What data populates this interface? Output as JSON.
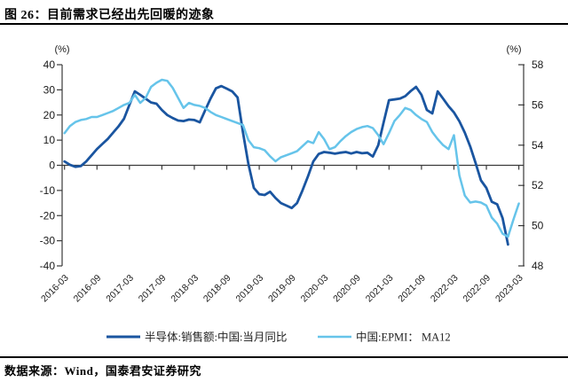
{
  "page": {
    "title": "图 26：目前需求已经出先回暖的迹象",
    "source": "数据来源：Wind，国泰君安证券研究"
  },
  "chart_data": {
    "type": "line",
    "grid": false,
    "legend_position": "bottom",
    "left_axis": {
      "unit_label": "(%)",
      "min": -40,
      "max": 40,
      "ticks": [
        40,
        30,
        20,
        10,
        0,
        -10,
        -20,
        -30,
        -40
      ]
    },
    "right_axis": {
      "unit_label": "(%)",
      "min": 48,
      "max": 58,
      "ticks": [
        58,
        56,
        54,
        52,
        50,
        48
      ]
    },
    "x_axis": {
      "tick_every_months": 6,
      "tick_labels": [
        "2016-03",
        "2016-09",
        "2017-03",
        "2017-09",
        "2018-03",
        "2018-09",
        "2019-03",
        "2019-09",
        "2020-03",
        "2020-09",
        "2021-03",
        "2021-09",
        "2022-03",
        "2022-09",
        "2023-03"
      ]
    },
    "categories": [
      "2016-03",
      "2016-04",
      "2016-05",
      "2016-06",
      "2016-07",
      "2016-08",
      "2016-09",
      "2016-10",
      "2016-11",
      "2016-12",
      "2017-01",
      "2017-02",
      "2017-03",
      "2017-04",
      "2017-05",
      "2017-06",
      "2017-07",
      "2017-08",
      "2017-09",
      "2017-10",
      "2017-11",
      "2017-12",
      "2018-01",
      "2018-02",
      "2018-03",
      "2018-04",
      "2018-05",
      "2018-06",
      "2018-07",
      "2018-08",
      "2018-09",
      "2018-10",
      "2018-11",
      "2018-12",
      "2019-01",
      "2019-02",
      "2019-03",
      "2019-04",
      "2019-05",
      "2019-06",
      "2019-07",
      "2019-08",
      "2019-09",
      "2019-10",
      "2019-11",
      "2019-12",
      "2020-01",
      "2020-02",
      "2020-03",
      "2020-04",
      "2020-05",
      "2020-06",
      "2020-07",
      "2020-08",
      "2020-09",
      "2020-10",
      "2020-11",
      "2020-12",
      "2021-01",
      "2021-02",
      "2021-03",
      "2021-04",
      "2021-05",
      "2021-06",
      "2021-07",
      "2021-08",
      "2021-09",
      "2021-10",
      "2021-11",
      "2021-12",
      "2022-01",
      "2022-02",
      "2022-03",
      "2022-04",
      "2022-05",
      "2022-06",
      "2022-07",
      "2022-08",
      "2022-09",
      "2022-10",
      "2022-11",
      "2022-12",
      "2023-01",
      "2023-02",
      "2023-03"
    ],
    "series": [
      {
        "key": "semiconductor-sales-yoy",
        "name": "半导体:销售额:中国:当月同比",
        "axis": "left",
        "color": "#1a55a0",
        "width": 2.8,
        "values": [
          1.5,
          0.2,
          -0.6,
          -0.3,
          1.5,
          4.0,
          6.5,
          8.5,
          10.5,
          13.0,
          15.5,
          18.5,
          24.0,
          29.4,
          28.0,
          26.5,
          25.0,
          24.5,
          22.0,
          20.0,
          18.8,
          17.8,
          17.6,
          18.2,
          18.0,
          17.1,
          21.8,
          26.5,
          30.6,
          31.5,
          30.5,
          29.4,
          27.0,
          13.0,
          0.5,
          -9.0,
          -11.5,
          -11.8,
          -10.5,
          -13.0,
          -15.0,
          -16.0,
          -17.0,
          -15.0,
          -10.0,
          -4.5,
          1.5,
          4.5,
          5.3,
          5.0,
          4.6,
          5.0,
          5.3,
          4.7,
          5.3,
          4.8,
          5.0,
          3.5,
          8.0,
          17.0,
          25.9,
          26.2,
          26.5,
          27.5,
          29.5,
          31.2,
          28.0,
          22.0,
          20.6,
          29.4,
          26.5,
          23.5,
          21.0,
          17.5,
          13.0,
          7.5,
          1.0,
          -6.0,
          -9.0,
          -14.5,
          -15.5,
          -21.0,
          -31.5,
          null,
          null
        ]
      },
      {
        "key": "china-epmi-ma12",
        "name": "中国:EPMI： MA12",
        "axis": "right",
        "color": "#66c4ea",
        "width": 2.5,
        "values": [
          54.6,
          54.95,
          55.15,
          55.25,
          55.3,
          55.4,
          55.4,
          55.5,
          55.6,
          55.7,
          55.85,
          56.0,
          56.1,
          56.5,
          56.1,
          56.35,
          56.9,
          57.1,
          57.25,
          57.2,
          56.85,
          56.35,
          55.85,
          56.1,
          56.0,
          55.95,
          55.85,
          55.65,
          55.5,
          55.4,
          55.3,
          55.2,
          55.1,
          55.0,
          54.25,
          53.9,
          53.85,
          53.75,
          53.45,
          53.2,
          53.4,
          53.5,
          53.6,
          53.7,
          53.95,
          54.2,
          54.1,
          54.65,
          54.3,
          53.8,
          53.9,
          54.2,
          54.45,
          54.65,
          54.8,
          54.9,
          54.95,
          54.85,
          54.5,
          54.05,
          54.6,
          55.2,
          55.5,
          55.85,
          55.75,
          55.5,
          55.3,
          55.15,
          54.65,
          54.3,
          54.0,
          53.8,
          54.5,
          52.5,
          51.5,
          51.15,
          51.2,
          51.15,
          51.0,
          50.4,
          50.1,
          49.6,
          49.45,
          50.3,
          51.1
        ]
      }
    ]
  }
}
